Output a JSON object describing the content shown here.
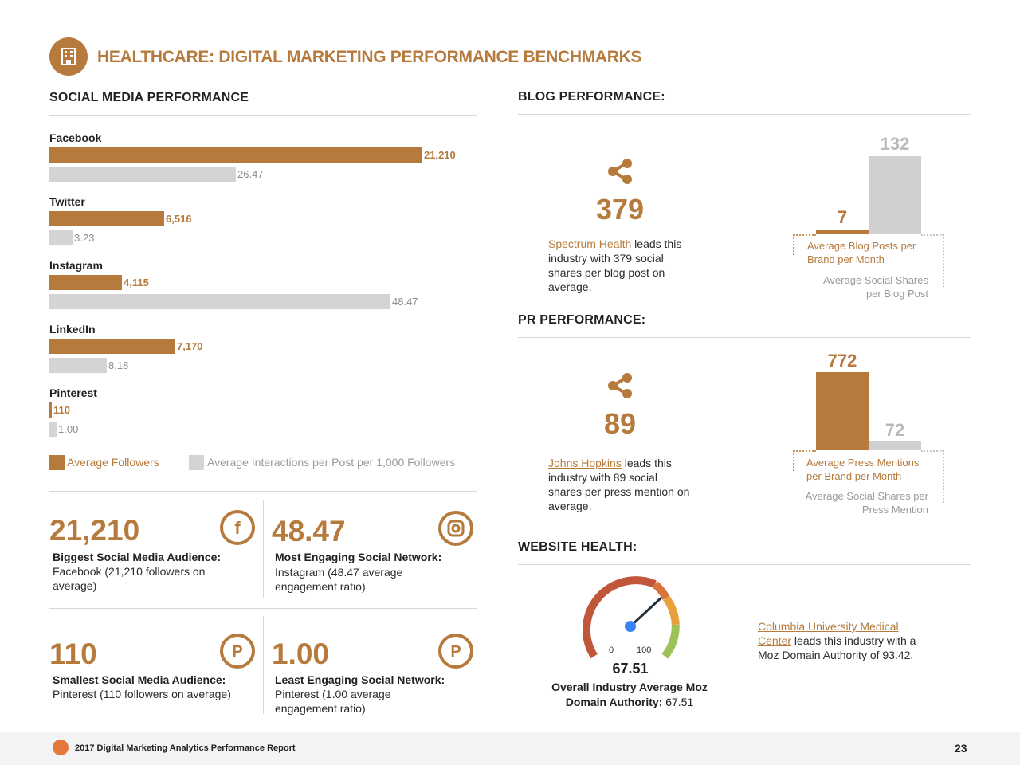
{
  "header": {
    "title": "HEALTHCARE: DIGITAL MARKETING PERFORMANCE BENCHMARKS",
    "icon": "hospital-building-icon"
  },
  "social": {
    "title": "SOCIAL MEDIA PERFORMANCE",
    "legend": {
      "followers": "Average Followers",
      "interactions": "Average Interactions per Post per 1,000 Followers"
    },
    "stats": [
      {
        "number": "21,210",
        "label": "Biggest Social Media Audience:",
        "desc": "Facebook (21,210 followers on average)",
        "icon": "facebook-icon"
      },
      {
        "number": "48.47",
        "label": "Most Engaging Social Network:",
        "desc": "Instagram (48.47 average engagement ratio)",
        "icon": "instagram-icon"
      },
      {
        "number": "110",
        "label": "Smallest Social Media Audience:",
        "desc": "Pinterest (110 followers on average)",
        "icon": "pinterest-icon"
      },
      {
        "number": "1.00",
        "label": "Least Engaging Social Network:",
        "desc": "Pinterest (1.00 average engagement ratio)",
        "icon": "pinterest-icon"
      }
    ]
  },
  "chart_data": [
    {
      "type": "bar",
      "title": "SOCIAL MEDIA PERFORMANCE",
      "categories": [
        "Facebook",
        "Twitter",
        "Instagram",
        "LinkedIn",
        "Pinterest"
      ],
      "series": [
        {
          "name": "Average Followers",
          "values": [
            21210,
            6516,
            4115,
            7170,
            110
          ],
          "labels": [
            "21,210",
            "6,516",
            "4,115",
            "7,170",
            "110"
          ],
          "color": "#b57a3c"
        },
        {
          "name": "Average Interactions per Post per 1,000 Followers",
          "values": [
            26.47,
            3.23,
            48.47,
            8.18,
            1.0
          ],
          "labels": [
            "26.47",
            "3.23",
            "48.47",
            "8.18",
            "1.00"
          ],
          "color": "#d4d4d4"
        }
      ],
      "legend": "bottom",
      "grid": false
    },
    {
      "type": "bar",
      "title": "BLOG PERFORMANCE:",
      "categories": [
        "Average Blog Posts per Brand per Month",
        "Average Social Shares per Blog Post"
      ],
      "values": [
        7,
        132
      ],
      "colors": [
        "#b57a3c",
        "#cfcfcf"
      ]
    },
    {
      "type": "bar",
      "title": "PR PERFORMANCE:",
      "categories": [
        "Average Press Mentions per Brand per Month",
        "Average Social Shares per Press Mention"
      ],
      "values": [
        772,
        72
      ],
      "colors": [
        "#b57a3c",
        "#cfcfcf"
      ]
    }
  ],
  "blog": {
    "title": "BLOG PERFORMANCE:",
    "number": "379",
    "icon": "share-icon",
    "link": "Spectrum Health",
    "text": " leads this industry with 379 social shares per blog post on average.",
    "bar_values": [
      "7",
      "132"
    ],
    "cap_brown": "Average Blog Posts per Brand per Month",
    "cap_grey": "Average Social Shares per Blog Post"
  },
  "pr": {
    "title": "PR PERFORMANCE:",
    "number": "89",
    "icon": "share-icon",
    "link": "Johns Hopkins",
    "text": " leads this industry with 89 social shares per press mention on average.",
    "bar_values": [
      "772",
      "72"
    ],
    "cap_brown": "Average Press Mentions per Brand per Month",
    "cap_grey": "Average Social Shares per Press Mention"
  },
  "website": {
    "title": "WEBSITE HEALTH:",
    "gauge_min": "0",
    "gauge_max": "100",
    "gauge_value": 67.51,
    "gauge_value_label": "67.51",
    "caption_bold": "Overall Industry Average Moz Domain Authority:",
    "caption_val": " 67.51",
    "link": "Columbia University Medical Center",
    "text": " leads this industry with a Moz Domain Authority of 93.42.",
    "gauge_colors": [
      "#c0563a",
      "#d9743a",
      "#e9a03c",
      "#9cc35a"
    ]
  },
  "footer": {
    "text": "2017 Digital Marketing Analytics Performance Report",
    "page": "23"
  }
}
